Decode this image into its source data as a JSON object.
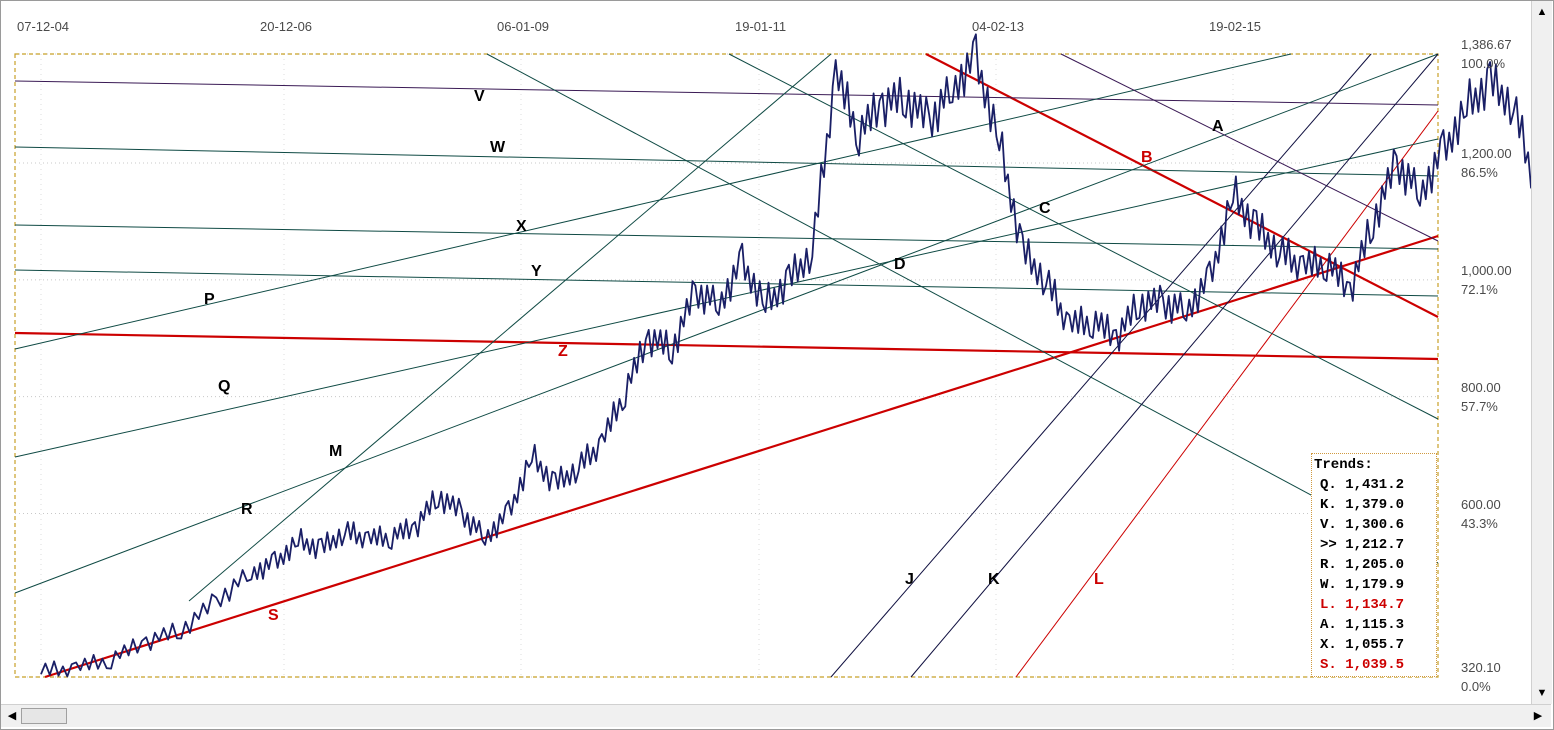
{
  "chart_data": {
    "type": "line",
    "x_ticks": [
      "07-12-04",
      "20-12-06",
      "06-01-09",
      "19-01-11",
      "04-02-13",
      "19-02-15"
    ],
    "y_ticks": [
      {
        "value": 1386.67,
        "label": "1,386.67",
        "pct": "100.0%"
      },
      {
        "value": 1200,
        "label": "1,200.00",
        "pct": "86.5%"
      },
      {
        "value": 1000,
        "label": "1,000.00",
        "pct": "72.1%"
      },
      {
        "value": 800,
        "label": "800.00",
        "pct": "57.7%"
      },
      {
        "value": 600,
        "label": "600.00",
        "pct": "43.3%"
      },
      {
        "value": 320.1,
        "label": "320.10",
        "pct": "0.0%"
      }
    ],
    "ylim": [
      320.1,
      1386.67
    ],
    "grid": "horizontal dotted",
    "series": [
      {
        "color": "#1a1f66",
        "x_years": [
          0.0,
          0.3,
          0.6,
          0.9,
          1.2,
          1.5,
          1.8,
          2.0,
          2.2,
          2.4,
          2.6,
          2.8,
          3.0,
          3.2,
          3.4,
          3.6,
          3.8,
          4.0,
          4.2,
          4.4,
          4.6,
          4.8,
          5.0,
          5.2,
          5.4,
          5.6,
          5.8,
          6.0,
          6.2,
          6.4,
          6.6,
          6.8,
          7.0,
          7.2,
          7.4,
          7.6,
          7.8,
          8.0,
          8.2,
          8.4,
          8.6,
          8.8,
          9.0,
          9.2,
          9.4,
          9.6,
          9.8,
          10.0,
          10.2,
          10.4,
          10.6,
          10.8,
          11.0,
          11.2,
          11.4,
          11.6,
          11.8,
          12.0,
          12.2,
          12.4,
          12.6,
          12.8,
          13.0,
          13.2,
          13.4,
          13.6,
          13.8,
          14.0,
          14.2
        ],
        "values": [
          330,
          335,
          350,
          380,
          400,
          450,
          500,
          515,
          555,
          540,
          570,
          555,
          560,
          575,
          630,
          600,
          560,
          600,
          700,
          650,
          680,
          720,
          810,
          900,
          880,
          980,
          960,
          1030,
          960,
          1000,
          1050,
          1350,
          1250,
          1300,
          1310,
          1270,
          1330,
          1380,
          1240,
          1050,
          1000,
          920,
          930,
          900,
          960,
          960,
          950,
          1000,
          1150,
          1090,
          1050,
          1020,
          1030,
          980,
          1100,
          1200,
          1150,
          1220,
          1300,
          1340,
          1300,
          1150,
          1100,
          1250,
          1380,
          1200,
          1180,
          1300,
          1340
        ]
      }
    ]
  },
  "trendlines": [
    {
      "name": "B",
      "color": "#cc0000"
    },
    {
      "name": "Z",
      "color": "#cc0000"
    },
    {
      "name": "S",
      "color": "#cc0000"
    },
    {
      "name": "L",
      "color": "#cc0000"
    },
    {
      "name": "V",
      "color": "#3a1a55"
    },
    {
      "name": "W",
      "color": "#0f4a44"
    },
    {
      "name": "X",
      "color": "#0f4a44"
    },
    {
      "name": "Y",
      "color": "#0f4a44"
    },
    {
      "name": "P",
      "color": "#0f4a44"
    },
    {
      "name": "Q",
      "color": "#0f4a44"
    },
    {
      "name": "M",
      "color": "#0f4a44"
    },
    {
      "name": "R",
      "color": "#0f4a44"
    },
    {
      "name": "A",
      "color": "#3a1a55"
    },
    {
      "name": "C",
      "color": "#0f4a44"
    },
    {
      "name": "D",
      "color": "#0f4a44"
    },
    {
      "name": "J",
      "color": "#101040"
    },
    {
      "name": "K",
      "color": "#101040"
    }
  ],
  "trends_panel": {
    "title": "Trends:",
    "rows": [
      {
        "text": "Q. 1,431.2",
        "color": "#000000"
      },
      {
        "text": "K. 1,379.0",
        "color": "#000000"
      },
      {
        "text": "V. 1,300.6",
        "color": "#000000"
      },
      {
        "text": ">> 1,212.7",
        "color": "#000000"
      },
      {
        "text": "R. 1,205.0",
        "color": "#000000"
      },
      {
        "text": "W. 1,179.9",
        "color": "#000000"
      },
      {
        "text": "L. 1,134.7",
        "color": "#cc0000"
      },
      {
        "text": "A. 1,115.3",
        "color": "#000000"
      },
      {
        "text": "X. 1,055.7",
        "color": "#000000"
      },
      {
        "text": "S. 1,039.5",
        "color": "#cc0000"
      }
    ]
  },
  "scrollbar": {
    "left_arrow": "◀",
    "right_arrow": "▶",
    "up_arrow": "▲",
    "down_arrow": "▼"
  }
}
